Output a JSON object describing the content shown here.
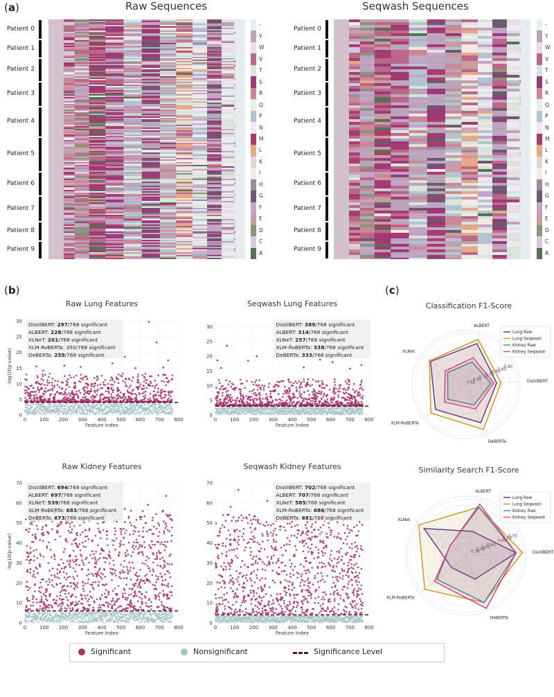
{
  "panel_a": {
    "letter": "a",
    "left_title": "Raw Sequences",
    "right_title": "Seqwash Sequences"
  },
  "patients": [
    "Patient 0",
    "Patient 1",
    "Patient 2",
    "Patient 3",
    "Patient 4",
    "Patient 5",
    "Patient 6",
    "Patient 7",
    "Patient 8",
    "Patient 9"
  ],
  "amino_acids": [
    "-",
    "Y",
    "W",
    "V",
    "T",
    "S",
    "R",
    "Q",
    "P",
    "N",
    "M",
    "L",
    "K",
    "I",
    "H",
    "G",
    "F",
    "E",
    "D",
    "C",
    "A"
  ],
  "aa_colors": [
    "#e8edf2",
    "#b8a6b8",
    "#ecdde4",
    "#b86888",
    "#d8e4dc",
    "#9a3a78",
    "#cc8898",
    "#ececec",
    "#b3c4d0",
    "#f2e8ee",
    "#a83c6c",
    "#e8a888",
    "#e0d4d8",
    "#f3e9e2",
    "#988aa0",
    "#6c5a70",
    "#c4a4c8",
    "#c89ca2",
    "#8a9478",
    "#d6cada",
    "#5a6e58"
  ],
  "panel_b": {
    "letter": "b"
  },
  "panel_c": {
    "letter": "c"
  },
  "legend": {
    "significant": "Significant",
    "nonsignificant": "Nonsignificant",
    "significance_level": "Significance Level",
    "significant_color": "#a3336a",
    "nonsignificant_color": "#a7c4c8",
    "level_color": "#5a1530"
  },
  "chart_data": [
    {
      "type": "scatter",
      "title": "Raw Lung Features",
      "xlabel": "Feature Index",
      "ylabel": "-log10(p-value)",
      "xlim": [
        0,
        800
      ],
      "ylim": [
        0,
        31
      ],
      "xticks": [
        0,
        100,
        200,
        300,
        400,
        500,
        600,
        700,
        800
      ],
      "yticks": [
        0,
        5,
        10,
        15,
        20,
        25,
        30
      ],
      "significance_level": 4,
      "n_features": 768,
      "stats": [
        {
          "model": "DistilBERT",
          "count": "297",
          "suffix": "/768 significant",
          "bold": true
        },
        {
          "model": "ALBERT",
          "count": "228",
          "suffix": "/768 significant",
          "bold": true
        },
        {
          "model": "XLNeT",
          "count": "201",
          "suffix": "/768 significant",
          "bold": true
        },
        {
          "model": "XLM-RoBERTa",
          "count": "350",
          "suffix": "/768 significant",
          "bold": false
        },
        {
          "model": "DeBERTa",
          "count": "259",
          "suffix": "/768 significant",
          "bold": true
        }
      ],
      "outliers": [
        [
          645,
          29.8
        ],
        [
          685,
          23.2
        ],
        [
          370,
          18.8
        ],
        [
          520,
          18.6
        ],
        [
          745,
          17.5
        ],
        [
          455,
          16.5
        ],
        [
          205,
          15.8
        ],
        [
          290,
          15.4
        ],
        [
          575,
          15.0
        ],
        [
          720,
          15.2
        ],
        [
          60,
          15.5
        ],
        [
          95,
          14.2
        ]
      ]
    },
    {
      "type": "scatter",
      "title": "Seqwash Lung Features",
      "xlabel": "Feature Index",
      "ylabel": "",
      "xlim": [
        0,
        800
      ],
      "ylim": [
        0,
        33
      ],
      "xticks": [
        0,
        100,
        200,
        300,
        400,
        500,
        600,
        700,
        800
      ],
      "yticks": [
        0,
        5,
        10,
        15,
        20,
        25,
        30
      ],
      "significance_level": 3,
      "n_features": 768,
      "stats": [
        {
          "model": "DistilBERT",
          "count": "389",
          "suffix": "/768 significant",
          "bold": true
        },
        {
          "model": "ALBERT",
          "count": "314",
          "suffix": "/768 significant",
          "bold": true
        },
        {
          "model": "XLNeT",
          "count": "257",
          "suffix": "/768 significant",
          "bold": true
        },
        {
          "model": "XLM-RoBERTa",
          "count": "338",
          "suffix": "/768 significant",
          "bold": true
        },
        {
          "model": "DeBERTa",
          "count": "333",
          "suffix": "/768 significant",
          "bold": true
        }
      ],
      "outliers": [
        [
          390,
          24.0
        ],
        [
          60,
          23.6
        ],
        [
          215,
          20.0
        ],
        [
          575,
          19.8
        ],
        [
          170,
          18.5
        ],
        [
          10,
          18.6
        ],
        [
          545,
          18.8
        ],
        [
          610,
          18.0
        ],
        [
          760,
          17.0
        ],
        [
          460,
          16.2
        ],
        [
          700,
          15.8
        ],
        [
          30,
          16.0
        ]
      ]
    },
    {
      "type": "scatter",
      "title": "Raw Kidney Features",
      "xlabel": "Feature Index",
      "ylabel": "-log10(p-value)",
      "xlim": [
        0,
        800
      ],
      "ylim": [
        0,
        71
      ],
      "xticks": [
        0,
        100,
        200,
        300,
        400,
        500,
        600,
        700,
        800
      ],
      "yticks": [
        0,
        10,
        20,
        30,
        40,
        50,
        60,
        70
      ],
      "significance_level": 6,
      "n_features": 768,
      "stats": [
        {
          "model": "DistilBERT",
          "count": "694",
          "suffix": "/768 significant",
          "bold": true
        },
        {
          "model": "ALBERT",
          "count": "697",
          "suffix": "/768 significant",
          "bold": true
        },
        {
          "model": "XLNeT",
          "count": "539",
          "suffix": "/768 significant",
          "bold": true
        },
        {
          "model": "XLM-RoBERTa",
          "count": "683",
          "suffix": "/768 significant",
          "bold": true
        },
        {
          "model": "DeBERTa",
          "count": "673",
          "suffix": "/768 significant",
          "bold": true
        }
      ],
      "outliers": [
        [
          735,
          63.5
        ],
        [
          640,
          59.0
        ],
        [
          520,
          57.0
        ],
        [
          180,
          56.0
        ],
        [
          60,
          55.0
        ],
        [
          330,
          55.5
        ],
        [
          420,
          54.0
        ],
        [
          600,
          53.0
        ],
        [
          270,
          52.0
        ]
      ]
    },
    {
      "type": "scatter",
      "title": "Seqwash Kidney Features",
      "xlabel": "Feature Index",
      "ylabel": "",
      "xlim": [
        0,
        800
      ],
      "ylim": [
        0,
        71
      ],
      "xticks": [
        0,
        100,
        200,
        300,
        400,
        500,
        600,
        700,
        800
      ],
      "yticks": [
        0,
        10,
        20,
        30,
        40,
        50,
        60,
        70
      ],
      "significance_level": 4,
      "n_features": 768,
      "stats": [
        {
          "model": "DistilBERT",
          "count": "702",
          "suffix": "/768 significant",
          "bold": true
        },
        {
          "model": "ALBERT",
          "count": "707",
          "suffix": "/768 significant",
          "bold": true
        },
        {
          "model": "XLNeT",
          "count": "585",
          "suffix": "/768 significant",
          "bold": true
        },
        {
          "model": "XLM-RoBERTa",
          "count": "686",
          "suffix": "/768 significant",
          "bold": true
        },
        {
          "model": "DeBERTa",
          "count": "681",
          "suffix": "/768 significant",
          "bold": true
        }
      ],
      "outliers": [
        [
          120,
          66.5
        ],
        [
          270,
          61.0
        ],
        [
          470,
          60.0
        ],
        [
          80,
          58.0
        ],
        [
          640,
          57.0
        ],
        [
          380,
          56.0
        ],
        [
          720,
          55.5
        ],
        [
          560,
          55.0
        ]
      ]
    },
    {
      "type": "radar",
      "title": "Classification F1-Score",
      "axes": [
        "ALBERT",
        "DistilBERT",
        "DeBERTa",
        "XLM-RoBERTa",
        "XLNet"
      ],
      "rlim": [
        0.55,
        0.92
      ],
      "rticks": [
        0.6,
        0.65,
        0.7,
        0.75,
        0.8,
        0.85,
        0.9
      ],
      "rtick_labels": [
        "0.60",
        "0.65",
        "0.70",
        "0.75",
        "0.80",
        "0.85",
        "0.90"
      ],
      "series": [
        {
          "name": "Lung Raw",
          "color": "#5b2a86",
          "values": [
            0.84,
            0.76,
            0.83,
            0.82,
            0.84
          ]
        },
        {
          "name": "Lung Seqwash",
          "color": "#c8941f",
          "values": [
            0.87,
            0.79,
            0.88,
            0.86,
            0.85
          ]
        },
        {
          "name": "Kidney Raw",
          "color": "#3a8a80",
          "values": [
            0.71,
            0.72,
            0.7,
            0.71,
            0.7
          ]
        },
        {
          "name": "Kidney Seqwash",
          "color": "#d93a8c",
          "values": [
            0.74,
            0.74,
            0.73,
            0.74,
            0.72
          ]
        }
      ]
    },
    {
      "type": "radar",
      "title": "Similarity Search F1-Score",
      "axes": [
        "ALBERT",
        "DistilBERT",
        "DeBERTa",
        "XLM-RoBERTa",
        "XLNet"
      ],
      "rlim": [
        0.52,
        0.71
      ],
      "rticks": [
        0.56,
        0.58,
        0.6,
        0.62,
        0.64,
        0.66,
        0.68,
        0.7
      ],
      "rtick_labels": [
        "0.56",
        "0.58",
        "0.60",
        "0.62",
        "",
        "0.66",
        "0.68",
        "0.70"
      ],
      "series": [
        {
          "name": "Lung Raw",
          "color": "#5b2a86",
          "values": [
            0.6,
            0.68,
            0.6,
            0.58,
            0.68
          ]
        },
        {
          "name": "Lung Seqwash",
          "color": "#c8941f",
          "values": [
            0.68,
            0.7,
            0.68,
            0.69,
            0.7
          ]
        },
        {
          "name": "Kidney Raw",
          "color": "#3a8a80",
          "values": [
            0.68,
            0.68,
            0.68,
            0.64,
            0.58
          ]
        },
        {
          "name": "Kidney Seqwash",
          "color": "#d93a8c",
          "values": [
            0.69,
            0.68,
            0.7,
            0.65,
            0.58
          ]
        }
      ]
    }
  ]
}
